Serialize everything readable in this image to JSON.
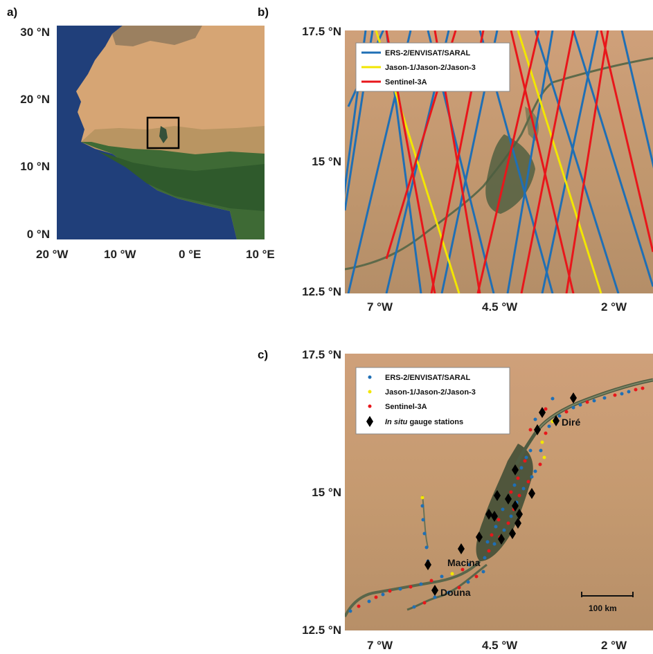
{
  "panels": {
    "a": {
      "label": "a)",
      "yticks": [
        "30 °N",
        "20 °N",
        "10 °N",
        "0 °N"
      ],
      "xticks": [
        "20 °W",
        "10 °W",
        "0 °E",
        "10 °E"
      ]
    },
    "b": {
      "label": "b)",
      "yticks": [
        "17.5 °N",
        "15 °N",
        "12.5 °N"
      ],
      "xticks": [
        "7 °W",
        "4.5 °W",
        "2 °W"
      ],
      "legend": [
        {
          "name": "ERS-2/ENVISAT/SARAL",
          "color": "#1f6fb5"
        },
        {
          "name": "Jason-1/Jason-2/Jason-3",
          "color": "#f2e600"
        },
        {
          "name": "Sentinel-3A",
          "color": "#e8161b"
        }
      ]
    },
    "c": {
      "label": "c)",
      "yticks": [
        "17.5 °N",
        "15 °N",
        "12.5 °N"
      ],
      "xticks": [
        "7 °W",
        "4.5 °W",
        "2 °W"
      ],
      "legend": [
        {
          "name": "ERS-2/ENVISAT/SARAL",
          "color": "#1f6fb5"
        },
        {
          "name": "Jason-1/Jason-2/Jason-3",
          "color": "#f2e600"
        },
        {
          "name": "Sentinel-3A",
          "color": "#e8161b"
        }
      ],
      "legend_stations_italic": "In situ",
      "legend_stations_rest": " gauge stations",
      "station_labels": [
        "Diré",
        "Macina",
        "Douna"
      ],
      "scale_bar": "100 km"
    }
  },
  "colors": {
    "ocean": "#1f3f78",
    "sahara": "#d8a878",
    "sahel": "#c79a6c",
    "vegetation": "#3f6e3a",
    "delta": "#3d4a33"
  }
}
